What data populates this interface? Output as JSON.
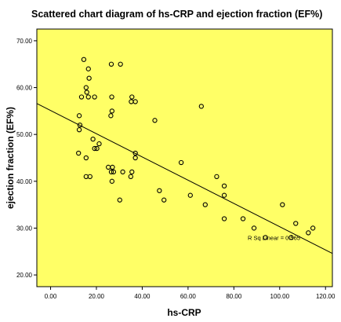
{
  "chart_data": {
    "type": "scatter",
    "title": "Scattered chart diagram of hs-CRP and ejection fraction (EF%)",
    "xlabel": "hs-CRP",
    "ylabel": "ejection fraction (EF%)",
    "xlim": [
      -6,
      123
    ],
    "ylim": [
      17.5,
      72.5
    ],
    "x_ticks": [
      {
        "value": 0,
        "label": "0.00"
      },
      {
        "value": 20,
        "label": "20.00"
      },
      {
        "value": 40,
        "label": "40.00"
      },
      {
        "value": 60,
        "label": "60.00"
      },
      {
        "value": 80,
        "label": "80.00"
      },
      {
        "value": 100,
        "label": "100.00"
      },
      {
        "value": 120,
        "label": "120.00"
      }
    ],
    "y_ticks": [
      {
        "value": 20,
        "label": "20.00"
      },
      {
        "value": 30,
        "label": "30.00"
      },
      {
        "value": 40,
        "label": "40.00"
      },
      {
        "value": 50,
        "label": "50.00"
      },
      {
        "value": 60,
        "label": "60.00"
      },
      {
        "value": 70,
        "label": "70.00"
      }
    ],
    "points": [
      {
        "x": 14.5,
        "y": 66
      },
      {
        "x": 26.5,
        "y": 65
      },
      {
        "x": 30.5,
        "y": 65
      },
      {
        "x": 16.5,
        "y": 64
      },
      {
        "x": 16.8,
        "y": 62
      },
      {
        "x": 15.5,
        "y": 60
      },
      {
        "x": 15.8,
        "y": 59
      },
      {
        "x": 13.5,
        "y": 58
      },
      {
        "x": 16.5,
        "y": 58
      },
      {
        "x": 19.2,
        "y": 58
      },
      {
        "x": 26.7,
        "y": 58
      },
      {
        "x": 35.5,
        "y": 58
      },
      {
        "x": 35.2,
        "y": 57
      },
      {
        "x": 37.0,
        "y": 57
      },
      {
        "x": 65.8,
        "y": 56
      },
      {
        "x": 26.8,
        "y": 55
      },
      {
        "x": 12.5,
        "y": 54
      },
      {
        "x": 26.3,
        "y": 54
      },
      {
        "x": 45.5,
        "y": 53
      },
      {
        "x": 12.8,
        "y": 52
      },
      {
        "x": 12.5,
        "y": 51
      },
      {
        "x": 18.5,
        "y": 49
      },
      {
        "x": 21.2,
        "y": 48
      },
      {
        "x": 19.2,
        "y": 47
      },
      {
        "x": 20.2,
        "y": 47
      },
      {
        "x": 12.2,
        "y": 46
      },
      {
        "x": 37.0,
        "y": 46
      },
      {
        "x": 15.5,
        "y": 45
      },
      {
        "x": 37.0,
        "y": 45
      },
      {
        "x": 57.0,
        "y": 44
      },
      {
        "x": 25.2,
        "y": 43
      },
      {
        "x": 27.0,
        "y": 43
      },
      {
        "x": 26.5,
        "y": 42
      },
      {
        "x": 27.5,
        "y": 42
      },
      {
        "x": 31.5,
        "y": 42
      },
      {
        "x": 35.5,
        "y": 42
      },
      {
        "x": 15.5,
        "y": 41
      },
      {
        "x": 17.2,
        "y": 41
      },
      {
        "x": 35.0,
        "y": 41
      },
      {
        "x": 72.5,
        "y": 41
      },
      {
        "x": 26.8,
        "y": 40
      },
      {
        "x": 75.8,
        "y": 39
      },
      {
        "x": 47.5,
        "y": 38
      },
      {
        "x": 61.0,
        "y": 37
      },
      {
        "x": 75.8,
        "y": 37
      },
      {
        "x": 30.2,
        "y": 36
      },
      {
        "x": 49.5,
        "y": 36
      },
      {
        "x": 67.5,
        "y": 35
      },
      {
        "x": 101.2,
        "y": 35
      },
      {
        "x": 75.8,
        "y": 32
      },
      {
        "x": 84.0,
        "y": 32
      },
      {
        "x": 107.0,
        "y": 31
      },
      {
        "x": 88.8,
        "y": 30
      },
      {
        "x": 114.5,
        "y": 30
      },
      {
        "x": 112.5,
        "y": 29
      },
      {
        "x": 93.8,
        "y": 28
      },
      {
        "x": 105.0,
        "y": 28
      }
    ],
    "fit_line": {
      "x": [
        -6,
        123
      ],
      "y": [
        56.6,
        24.6
      ]
    },
    "annotation": "R Sq Linear = 0.565",
    "colors": {
      "plot_background": "#ffff66",
      "marker_stroke": "#000000",
      "fit_line": "#000000"
    },
    "grid": false,
    "legend": "none"
  }
}
